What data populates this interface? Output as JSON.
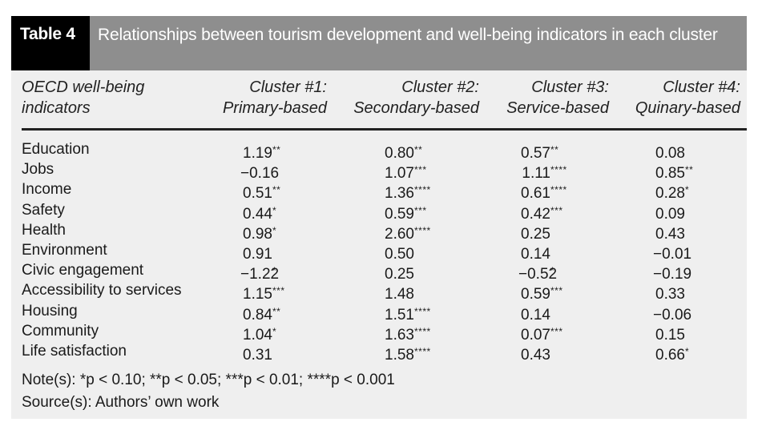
{
  "table": {
    "tag": "Table 4",
    "title": "Relationships between tourism development and well-being indicators in each cluster"
  },
  "headers": {
    "col0": [
      "OECD well-being",
      "indicators"
    ],
    "col1": [
      "Cluster #1:",
      "Primary-based"
    ],
    "col2": [
      "Cluster #2:",
      "Secondary-based"
    ],
    "col3": [
      "Cluster #3:",
      "Service-based"
    ],
    "col4": [
      "Cluster #4:",
      "Quinary-based"
    ]
  },
  "rows": [
    {
      "label": "Education",
      "cells": [
        [
          "1.19",
          "**"
        ],
        [
          "0.80",
          "**"
        ],
        [
          "0.57",
          "**"
        ],
        [
          "0.08",
          ""
        ]
      ]
    },
    {
      "label": "Jobs",
      "cells": [
        [
          "−0.16",
          ""
        ],
        [
          "1.07",
          "***"
        ],
        [
          "1.11",
          "****"
        ],
        [
          "0.85",
          "**"
        ]
      ]
    },
    {
      "label": "Income",
      "cells": [
        [
          "0.51",
          "**"
        ],
        [
          "1.36",
          "****"
        ],
        [
          "0.61",
          "****"
        ],
        [
          "0.28",
          "*"
        ]
      ]
    },
    {
      "label": "Safety",
      "cells": [
        [
          "0.44",
          "*"
        ],
        [
          "0.59",
          "***"
        ],
        [
          "0.42",
          "***"
        ],
        [
          "0.09",
          ""
        ]
      ]
    },
    {
      "label": "Health",
      "cells": [
        [
          "0.98",
          "*"
        ],
        [
          "2.60",
          "****"
        ],
        [
          "0.25",
          ""
        ],
        [
          "0.43",
          ""
        ]
      ]
    },
    {
      "label": "Environment",
      "cells": [
        [
          "0.91",
          ""
        ],
        [
          "0.50",
          ""
        ],
        [
          "0.14",
          ""
        ],
        [
          "−0.01",
          ""
        ]
      ]
    },
    {
      "label": "Civic engagement",
      "cells": [
        [
          "−1.22",
          "*"
        ],
        [
          "0.25",
          ""
        ],
        [
          "−0.52",
          "*"
        ],
        [
          "−0.19",
          ""
        ]
      ]
    },
    {
      "label": "Accessibility to services",
      "cells": [
        [
          "1.15",
          "***"
        ],
        [
          "1.48",
          ""
        ],
        [
          "0.59",
          "***"
        ],
        [
          "0.33",
          ""
        ]
      ]
    },
    {
      "label": "Housing",
      "cells": [
        [
          "0.84",
          "**"
        ],
        [
          "1.51",
          "****"
        ],
        [
          "0.14",
          ""
        ],
        [
          "−0.06",
          ""
        ]
      ]
    },
    {
      "label": "Community",
      "cells": [
        [
          "1.04",
          "*"
        ],
        [
          "1.63",
          "****"
        ],
        [
          "0.07",
          "***"
        ],
        [
          "0.15",
          ""
        ]
      ]
    },
    {
      "label": "Life satisfaction",
      "cells": [
        [
          "0.31",
          ""
        ],
        [
          "1.58",
          "****"
        ],
        [
          "0.43",
          ""
        ],
        [
          "0.66",
          "*"
        ]
      ]
    }
  ],
  "note": {
    "label": "Note(s):",
    "text": " *p < 0.10; **p < 0.05; ***p < 0.01; ****p < 0.001"
  },
  "source": {
    "label": "Source(s):",
    "text": " Authors’ own work"
  }
}
